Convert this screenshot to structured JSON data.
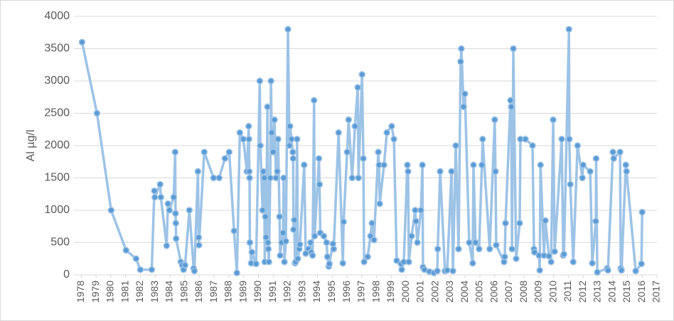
{
  "chart_data": {
    "type": "line",
    "ylabel": "Al µg/l",
    "color": "#9dc3e6",
    "marker_color": "#5b9bd5",
    "grid": true,
    "xlim": [
      1977.5,
      2017
    ],
    "ylim": [
      0,
      4000
    ],
    "xticks": [
      1978,
      1979,
      1980,
      1981,
      1982,
      1983,
      1984,
      1985,
      1986,
      1987,
      1988,
      1989,
      1990,
      1991,
      1992,
      1993,
      1994,
      1995,
      1996,
      1997,
      1998,
      1999,
      2000,
      2001,
      2002,
      2003,
      2004,
      2005,
      2006,
      2007,
      2008,
      2009,
      2010,
      2011,
      2012,
      2013,
      2014,
      2015,
      2016,
      2017
    ],
    "yticks": [
      0,
      500,
      1000,
      1500,
      2000,
      2500,
      3000,
      3500,
      4000
    ],
    "x": [
      1978.05,
      1979.06,
      1980.02,
      1981.03,
      1981.71,
      1982.0,
      1982.77,
      1982.95,
      1982.98,
      1983.34,
      1983.39,
      1983.78,
      1983.87,
      1983.97,
      1984.26,
      1984.36,
      1984.38,
      1984.4,
      1984.42,
      1984.74,
      1984.84,
      1984.93,
      1985.03,
      1985.32,
      1985.61,
      1985.66,
      1985.9,
      1985.95,
      1985.97,
      1986.33,
      1986.96,
      1987.34,
      1987.73,
      1988.02,
      1988.35,
      1988.54,
      1988.74,
      1988.98,
      1989.22,
      1989.34,
      1989.36,
      1989.38,
      1989.4,
      1989.42,
      1989.51,
      1989.56,
      1989.84,
      1990.09,
      1990.13,
      1990.28,
      1990.33,
      1990.4,
      1990.43,
      1990.47,
      1990.52,
      1990.61,
      1990.64,
      1990.67,
      1990.71,
      1990.8,
      1990.85,
      1990.9,
      1991.0,
      1991.09,
      1991.19,
      1991.28,
      1991.33,
      1991.43,
      1991.47,
      1991.57,
      1991.67,
      1991.71,
      1991.76,
      1991.86,
      1992.0,
      1992.1,
      1992.14,
      1992.24,
      1992.33,
      1992.35,
      1992.38,
      1992.43,
      1992.48,
      1992.52,
      1992.62,
      1992.67,
      1992.76,
      1992.81,
      1993.1,
      1993.2,
      1993.39,
      1993.53,
      1993.57,
      1993.67,
      1993.77,
      1993.81,
      1994.1,
      1994.14,
      1994.19,
      1994.43,
      1994.62,
      1994.67,
      1994.77,
      1994.81,
      1995.05,
      1995.1,
      1995.43,
      1995.72,
      1995.77,
      1996.01,
      1996.11,
      1996.35,
      1996.54,
      1996.73,
      1996.78,
      1997.02,
      1997.11,
      1997.16,
      1997.4,
      1997.59,
      1997.69,
      1997.83,
      1998.12,
      1998.17,
      1998.22,
      1998.51,
      1998.7,
      1999.03,
      1999.18,
      1999.37,
      1999.66,
      1999.71,
      1999.85,
      2000.09,
      2000.14,
      2000.19,
      2000.38,
      2000.62,
      2000.67,
      2000.77,
      2001.01,
      2001.11,
      2001.15,
      2001.25,
      2001.59,
      2001.88,
      2002.12,
      2002.15,
      2002.31,
      2002.64,
      2002.79,
      2003.08,
      2003.18,
      2003.37,
      2003.56,
      2003.7,
      2003.75,
      2003.9,
      2003.99,
      2004.28,
      2004.52,
      2004.57,
      2004.71,
      2004.95,
      2005.14,
      2005.19,
      2005.67,
      2006.01,
      2006.06,
      2006.11,
      2006.64,
      2006.69,
      2006.74,
      2007.08,
      2007.13,
      2007.18,
      2007.27,
      2007.46,
      2007.7,
      2007.75,
      2008.09,
      2008.57,
      2008.67,
      2008.7,
      2009.01,
      2009.06,
      2009.11,
      2009.35,
      2009.44,
      2009.68,
      2009.83,
      2009.97,
      2010.07,
      2010.55,
      2010.65,
      2010.7,
      2011.04,
      2011.06,
      2011.13,
      2011.33,
      2011.62,
      2011.95,
      2012.0,
      2012.48,
      2012.62,
      2012.86,
      2012.88,
      2012.96,
      2013.63,
      2013.68,
      2014.02,
      2014.07,
      2014.5,
      2014.55,
      2014.6,
      2014.89,
      2014.94,
      2015.56,
      2015.95,
      2016.0
    ],
    "values": [
      3600,
      2500,
      1000,
      380,
      250,
      80,
      80,
      1300,
      1200,
      1400,
      1200,
      450,
      1100,
      1000,
      1200,
      1900,
      950,
      800,
      560,
      200,
      150,
      80,
      150,
      1000,
      100,
      60,
      1600,
      580,
      460,
      1900,
      1500,
      1500,
      1800,
      1900,
      680,
      30,
      2200,
      2100,
      1600,
      2300,
      2100,
      1600,
      1500,
      500,
      180,
      350,
      170,
      3000,
      2000,
      1000,
      1600,
      1500,
      200,
      900,
      580,
      2600,
      500,
      400,
      200,
      1500,
      3000,
      2200,
      1900,
      2400,
      1500,
      1600,
      2100,
      900,
      300,
      500,
      650,
      1500,
      200,
      520,
      3800,
      2000,
      2300,
      2100,
      1900,
      1800,
      700,
      850,
      180,
      200,
      2100,
      250,
      400,
      470,
      1700,
      330,
      400,
      500,
      350,
      300,
      2700,
      600,
      1800,
      1400,
      650,
      600,
      500,
      280,
      130,
      170,
      480,
      400,
      2200,
      180,
      820,
      1900,
      2400,
      1500,
      2300,
      2900,
      1500,
      3100,
      1800,
      200,
      280,
      600,
      800,
      540,
      1900,
      1700,
      1100,
      1700,
      2200,
      2300,
      2100,
      220,
      170,
      80,
      200,
      1700,
      1600,
      200,
      600,
      1000,
      830,
      500,
      1000,
      1700,
      120,
      80,
      50,
      30,
      60,
      400,
      1600,
      60,
      70,
      1600,
      60,
      2000,
      400,
      3300,
      3500,
      2600,
      2800,
      500,
      180,
      1700,
      500,
      400,
      1700,
      2100,
      400,
      2400,
      1600,
      460,
      200,
      280,
      800,
      2700,
      2600,
      400,
      3500,
      250,
      800,
      2100,
      2100,
      2000,
      400,
      350,
      300,
      70,
      1700,
      300,
      840,
      290,
      200,
      2400,
      360,
      2100,
      300,
      320,
      3800,
      2100,
      1400,
      200,
      2000,
      1500,
      1700,
      1600,
      180,
      830,
      1800,
      40,
      100,
      70,
      1900,
      1800,
      1900,
      100,
      70,
      1700,
      1600,
      60,
      170,
      970
    ]
  }
}
